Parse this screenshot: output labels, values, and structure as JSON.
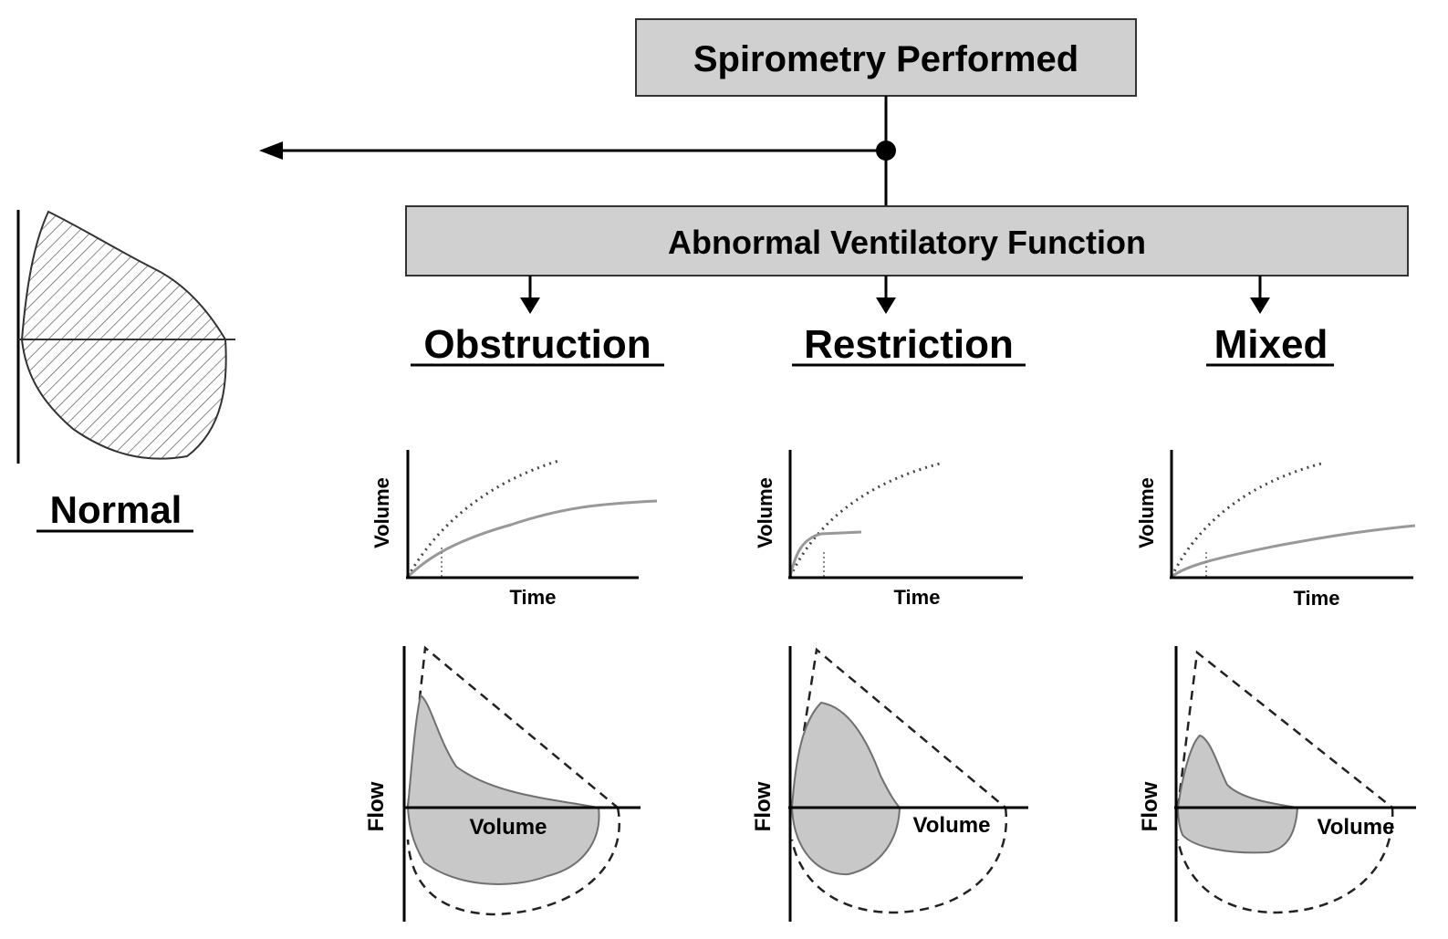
{
  "top_box": {
    "label": "Spirometry Performed"
  },
  "abnormal_box": {
    "label": "Abnormal Ventilatory Function"
  },
  "normal": {
    "label": "Normal"
  },
  "categories": [
    {
      "label": "Obstruction",
      "vt": {
        "xlabel": "Time",
        "ylabel": "Volume"
      },
      "fv": {
        "xlabel": "Volume",
        "ylabel": "Flow"
      }
    },
    {
      "label": "Restriction",
      "vt": {
        "xlabel": "Time",
        "ylabel": "Volume"
      },
      "fv": {
        "xlabel": "Volume",
        "ylabel": "Flow"
      }
    },
    {
      "label": "Mixed",
      "vt": {
        "xlabel": "Time",
        "ylabel": "Volume"
      },
      "fv": {
        "xlabel": "Volume",
        "ylabel": "Flow"
      }
    }
  ],
  "colors": {
    "box_fill": "#d0d0d0",
    "curve_fill": "#c8c8c8",
    "curve_stroke": "#707070",
    "line": "#000000"
  }
}
